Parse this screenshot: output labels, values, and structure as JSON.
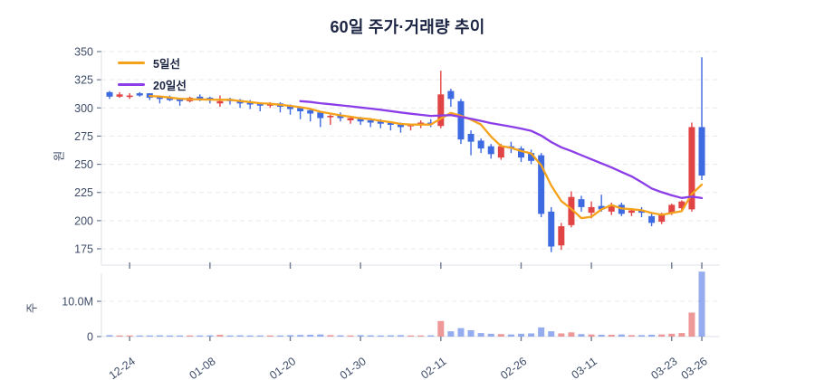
{
  "chart": {
    "title": "60일 주가·거래량 추이",
    "price_axis_label": "원",
    "volume_axis_label": "주",
    "legend": [
      {
        "label": "5일선",
        "color": "#F5A21B"
      },
      {
        "label": "20일선",
        "color": "#8B3DE8"
      }
    ]
  },
  "colors": {
    "up": "#E14444",
    "down": "#3E6AE1",
    "ma5": "#F5A21B",
    "ma20": "#8B3DE8",
    "grid": "#E9E9E9",
    "spine": "#DCE1EA",
    "tick": "#6E7A90",
    "axis_text": "#3E4C68",
    "title_text": "#1B2442",
    "background": "#FFFFFF",
    "volume_opacity": 0.55
  },
  "chart_data": {
    "type": "candlestick_with_volume",
    "title": "60일 주가·거래량 추이",
    "price_ylabel": "원",
    "volume_ylabel": "주",
    "price_ticks": [
      175,
      200,
      225,
      250,
      275,
      300,
      325,
      350
    ],
    "price_range": [
      175,
      350
    ],
    "volume_ticks": [
      {
        "value": 0,
        "label": "0"
      },
      {
        "value": 10,
        "label": "10.0M"
      }
    ],
    "volume_unit": "M",
    "x_ticks": [
      {
        "index": 2,
        "label": "12-24"
      },
      {
        "index": 10,
        "label": "01-08"
      },
      {
        "index": 18,
        "label": "01-20"
      },
      {
        "index": 25,
        "label": "01-30"
      },
      {
        "index": 33,
        "label": "02-11"
      },
      {
        "index": 41,
        "label": "02-26"
      },
      {
        "index": 48,
        "label": "03-11"
      },
      {
        "index": 56,
        "label": "03-23"
      },
      {
        "index": 59,
        "label": "03-26"
      }
    ],
    "moving_averages": [
      {
        "name": "5일선",
        "window": 5,
        "color_key": "ma5"
      },
      {
        "name": "20일선",
        "window": 20,
        "color_key": "ma20"
      }
    ],
    "open": [
      314,
      310,
      310,
      313,
      313,
      310,
      309,
      308,
      306,
      310,
      309,
      304,
      308,
      307,
      305,
      304,
      302,
      304,
      302,
      300,
      298,
      296,
      292,
      293,
      289,
      291,
      289,
      288,
      287,
      286,
      284,
      285,
      287,
      284,
      315,
      306,
      277,
      271,
      266,
      256,
      266,
      264,
      260,
      258,
      208,
      178,
      196,
      219,
      207,
      213,
      208,
      214,
      207,
      209,
      204,
      199,
      207,
      211,
      210,
      283
    ],
    "high": [
      315,
      314,
      313,
      314,
      313,
      311,
      311,
      309,
      310,
      312,
      310,
      311,
      309,
      308,
      307,
      305,
      305,
      305,
      303,
      301,
      299,
      297,
      294,
      296,
      293,
      292,
      291,
      290,
      288,
      287,
      286,
      289,
      290,
      333,
      317,
      308,
      280,
      273,
      268,
      268,
      270,
      266,
      263,
      260,
      212,
      198,
      226,
      222,
      217,
      223,
      216,
      216,
      211,
      212,
      206,
      207,
      215,
      218,
      287,
      345
    ],
    "low": [
      308,
      309,
      308,
      310,
      307,
      304,
      306,
      302,
      305,
      306,
      304,
      301,
      303,
      300,
      299,
      297,
      300,
      296,
      294,
      290,
      288,
      283,
      285,
      288,
      286,
      285,
      283,
      282,
      280,
      278,
      280,
      282,
      283,
      282,
      301,
      268,
      258,
      260,
      255,
      254,
      260,
      252,
      250,
      203,
      172,
      174,
      194,
      208,
      202,
      208,
      205,
      204,
      204,
      203,
      195,
      197,
      205,
      208,
      208,
      236
    ],
    "close": [
      310,
      312,
      311,
      311,
      309,
      308,
      307,
      306,
      309,
      308,
      307,
      306,
      306,
      304,
      303,
      302,
      304,
      301,
      299,
      297,
      295,
      291,
      293,
      291,
      291,
      288,
      287,
      286,
      285,
      283,
      285,
      287,
      286,
      312,
      308,
      272,
      270,
      264,
      259,
      266,
      264,
      256,
      253,
      206,
      177,
      195,
      221,
      212,
      212,
      210,
      214,
      206,
      209,
      207,
      198,
      206,
      214,
      217,
      283,
      240
    ],
    "volume_m": [
      0.4,
      0.3,
      0.3,
      0.25,
      0.3,
      0.35,
      0.3,
      0.3,
      0.25,
      0.3,
      0.35,
      0.5,
      0.3,
      0.35,
      0.3,
      0.3,
      0.25,
      0.3,
      0.4,
      0.45,
      0.5,
      0.6,
      0.4,
      0.35,
      0.3,
      0.4,
      0.35,
      0.3,
      0.35,
      0.4,
      0.3,
      0.3,
      0.35,
      4.4,
      1.5,
      2.4,
      1.8,
      1.0,
      0.8,
      0.7,
      0.6,
      0.8,
      0.9,
      2.6,
      1.5,
      0.9,
      1.2,
      0.7,
      0.6,
      0.5,
      0.5,
      0.6,
      0.4,
      0.4,
      0.5,
      0.6,
      0.8,
      1.0,
      6.8,
      18.4
    ]
  }
}
